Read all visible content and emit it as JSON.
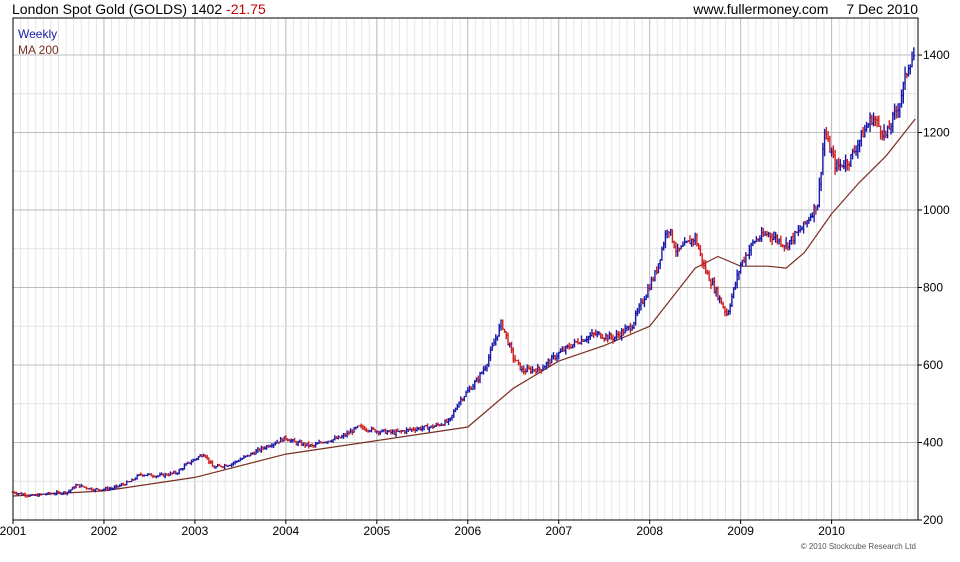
{
  "header": {
    "title": "London Spot Gold (GOLDS) 1402",
    "change": "-21.75",
    "site": "www.fullermoney.com",
    "date": "7 Dec 2010"
  },
  "legend": {
    "period": "Weekly",
    "ma": "MA 200"
  },
  "copyright": "© 2010 Stockcube Research Ltd",
  "colors": {
    "up": "#1a1aaa",
    "down": "#cc1f1f",
    "ma": "#7a2e22",
    "grid": "#c8c8c8",
    "border": "#000000"
  },
  "chart_data": {
    "type": "line",
    "title": "London Spot Gold (GOLDS) 1402",
    "xlabel": "",
    "ylabel": "",
    "x_ticks": [
      "2001",
      "2002",
      "2003",
      "2004",
      "2005",
      "2006",
      "2007",
      "2008",
      "2009",
      "2010"
    ],
    "y_ticks": [
      200,
      400,
      600,
      800,
      1000,
      1200,
      1400
    ],
    "xlim": [
      2001.0,
      2010.95
    ],
    "ylim": [
      200,
      1450
    ],
    "grid": true,
    "legend_position": "top-left",
    "series": [
      {
        "name": "Weekly",
        "x": [
          2001.0,
          2001.2,
          2001.4,
          2001.6,
          2001.7,
          2001.9,
          2002.1,
          2002.3,
          2002.4,
          2002.6,
          2002.8,
          2002.9,
          2003.1,
          2003.2,
          2003.4,
          2003.6,
          2003.8,
          2004.0,
          2004.1,
          2004.3,
          2004.4,
          2004.6,
          2004.8,
          2005.0,
          2005.2,
          2005.4,
          2005.6,
          2005.8,
          2005.9,
          2006.1,
          2006.2,
          2006.37,
          2006.5,
          2006.6,
          2006.8,
          2007.0,
          2007.2,
          2007.4,
          2007.6,
          2007.8,
          2007.95,
          2008.07,
          2008.2,
          2008.3,
          2008.5,
          2008.6,
          2008.75,
          2008.85,
          2009.0,
          2009.15,
          2009.3,
          2009.5,
          2009.7,
          2009.85,
          2009.92,
          2010.05,
          2010.2,
          2010.35,
          2010.45,
          2010.6,
          2010.75,
          2010.85,
          2010.92
        ],
        "y": [
          272,
          262,
          268,
          272,
          290,
          278,
          282,
          300,
          318,
          314,
          322,
          342,
          372,
          335,
          345,
          368,
          392,
          412,
          400,
          390,
          402,
          412,
          440,
          430,
          425,
          435,
          440,
          455,
          505,
          560,
          600,
          710,
          620,
          585,
          590,
          630,
          660,
          680,
          670,
          700,
          780,
          840,
          960,
          890,
          930,
          850,
          780,
          730,
          860,
          920,
          940,
          910,
          960,
          1020,
          1200,
          1110,
          1130,
          1200,
          1240,
          1190,
          1280,
          1380,
          1402
        ]
      },
      {
        "name": "MA 200",
        "x": [
          2001.0,
          2002.0,
          2003.0,
          2004.0,
          2005.0,
          2006.0,
          2006.5,
          2007.0,
          2007.5,
          2008.0,
          2008.5,
          2008.75,
          2009.0,
          2009.3,
          2009.5,
          2009.7,
          2010.0,
          2010.3,
          2010.6,
          2010.92
        ],
        "y": [
          262,
          275,
          310,
          370,
          405,
          440,
          540,
          610,
          650,
          700,
          850,
          880,
          855,
          855,
          850,
          890,
          990,
          1070,
          1140,
          1235
        ]
      }
    ]
  }
}
